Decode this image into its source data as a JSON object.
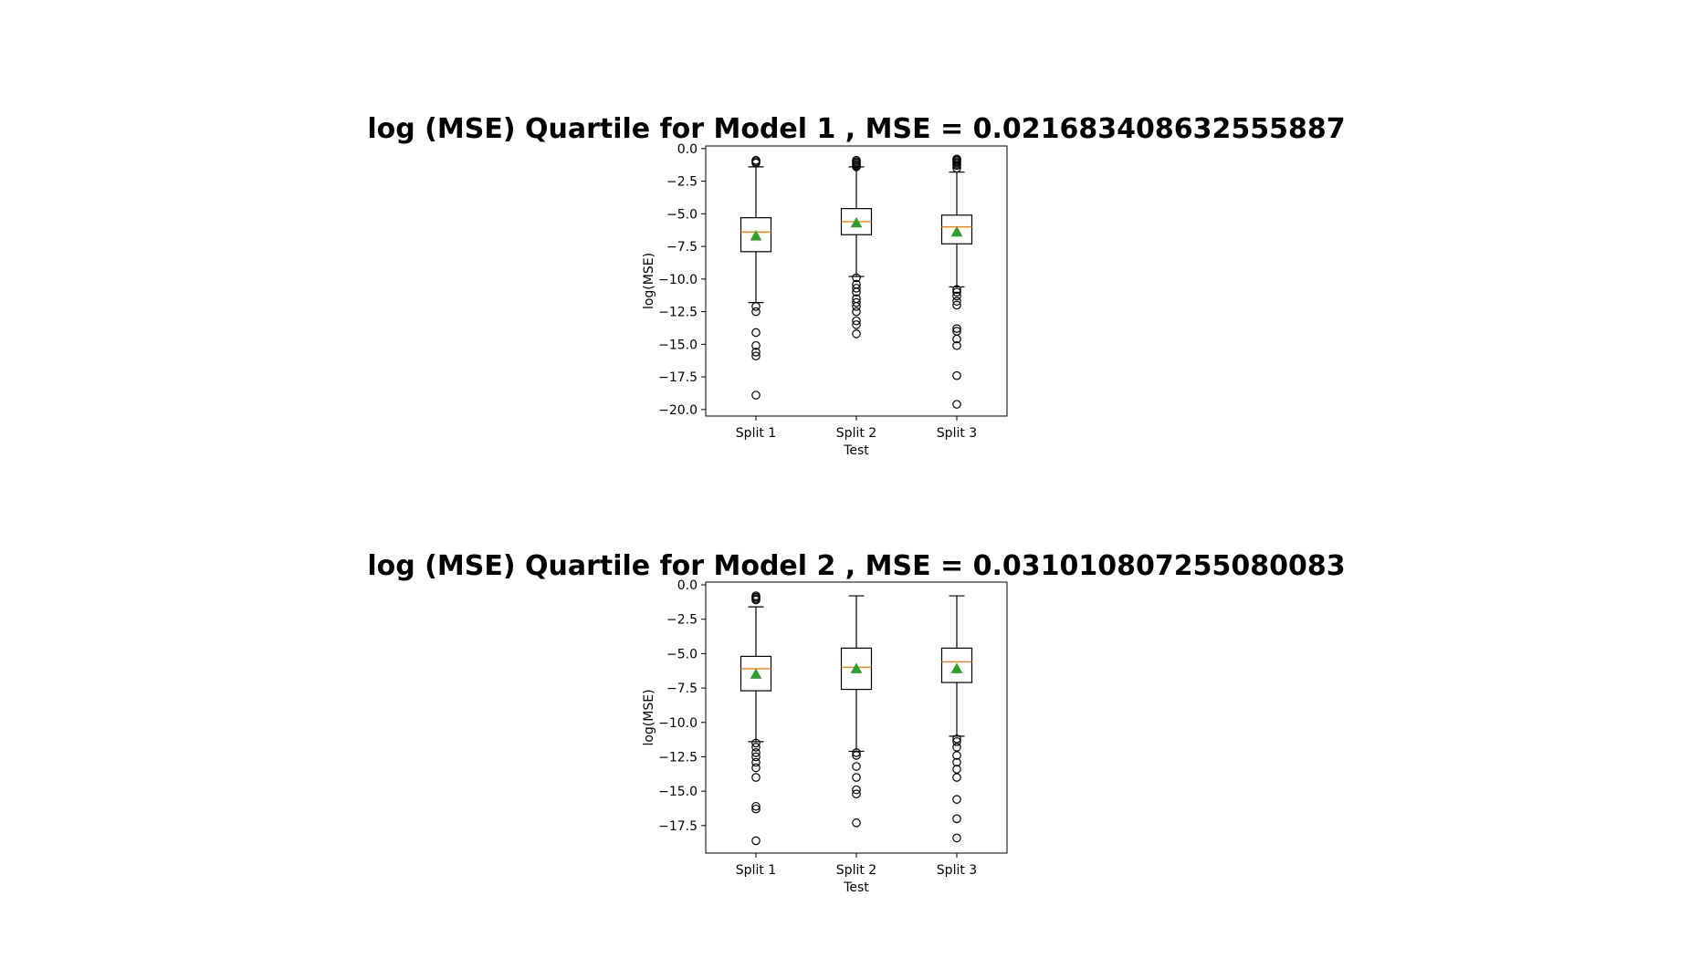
{
  "chart_data": [
    {
      "type": "box",
      "title": "log (MSE) Quartile for Model 1 , MSE = 0.021683408632555887",
      "xlabel": "Test",
      "ylabel": "log(MSE)",
      "ylim": [
        -20.5,
        0.2
      ],
      "yticks": [
        0.0,
        -2.5,
        -5.0,
        -7.5,
        -10.0,
        -12.5,
        -15.0,
        -17.5,
        -20.0
      ],
      "ytick_labels": [
        "0.0",
        "−2.5",
        "−5.0",
        "−7.5",
        "−10.0",
        "−12.5",
        "−15.0",
        "−17.5",
        "−20.0"
      ],
      "categories": [
        "Split 1",
        "Split 2",
        "Split 3"
      ],
      "boxes": [
        {
          "whisker_high": -1.4,
          "q3": -5.3,
          "median": -6.4,
          "q1": -7.9,
          "whisker_low": -11.8,
          "mean": -6.7,
          "outliers": [
            -0.9,
            -1.0,
            -1.1,
            -12.1,
            -12.5,
            -14.1,
            -15.1,
            -15.6,
            -15.9,
            -18.9
          ]
        },
        {
          "whisker_high": -1.4,
          "q3": -4.6,
          "median": -5.6,
          "q1": -6.6,
          "whisker_low": -9.8,
          "mean": -5.7,
          "outliers": [
            -0.9,
            -1.0,
            -1.1,
            -1.2,
            -1.3,
            -1.4,
            -9.9,
            -10.4,
            -10.7,
            -11.0,
            -11.5,
            -11.8,
            -12.1,
            -12.5,
            -13.2,
            -13.5,
            -14.2
          ]
        },
        {
          "whisker_high": -1.8,
          "q3": -5.1,
          "median": -6.0,
          "q1": -7.3,
          "whisker_low": -10.6,
          "mean": -6.4,
          "outliers": [
            -0.8,
            -0.9,
            -1.0,
            -1.1,
            -1.2,
            -1.3,
            -1.5,
            -10.8,
            -11.0,
            -11.3,
            -11.7,
            -12.0,
            -13.8,
            -14.0,
            -14.6,
            -15.1,
            -17.4,
            -19.6
          ]
        }
      ]
    },
    {
      "type": "box",
      "title": "log (MSE) Quartile for Model 2 , MSE = 0.031010807255080083",
      "xlabel": "Test",
      "ylabel": "log(MSE)",
      "ylim": [
        -19.5,
        0.2
      ],
      "yticks": [
        0.0,
        -2.5,
        -5.0,
        -7.5,
        -10.0,
        -12.5,
        -15.0,
        -17.5
      ],
      "ytick_labels": [
        "0.0",
        "−2.5",
        "−5.0",
        "−7.5",
        "−10.0",
        "−12.5",
        "−15.0",
        "−17.5"
      ],
      "categories": [
        "Split 1",
        "Split 2",
        "Split 3"
      ],
      "boxes": [
        {
          "whisker_high": -1.6,
          "q3": -5.2,
          "median": -6.1,
          "q1": -7.7,
          "whisker_low": -11.4,
          "mean": -6.5,
          "outliers": [
            -0.8,
            -0.9,
            -1.0,
            -1.1,
            -11.5,
            -11.8,
            -12.2,
            -12.5,
            -12.9,
            -13.3,
            -14.0,
            -16.1,
            -16.3,
            -18.6
          ]
        },
        {
          "whisker_high": -0.8,
          "q3": -4.6,
          "median": -6.0,
          "q1": -7.6,
          "whisker_low": -12.1,
          "mean": -6.1,
          "outliers": [
            -12.2,
            -12.4,
            -13.2,
            -14.0,
            -14.9,
            -15.2,
            -17.3
          ]
        },
        {
          "whisker_high": -0.8,
          "q3": -4.6,
          "median": -5.6,
          "q1": -7.1,
          "whisker_low": -11.0,
          "mean": -6.1,
          "outliers": [
            -11.2,
            -11.4,
            -11.8,
            -12.4,
            -12.9,
            -13.4,
            -14.0,
            -15.6,
            -17.0,
            -18.4
          ]
        }
      ]
    }
  ]
}
